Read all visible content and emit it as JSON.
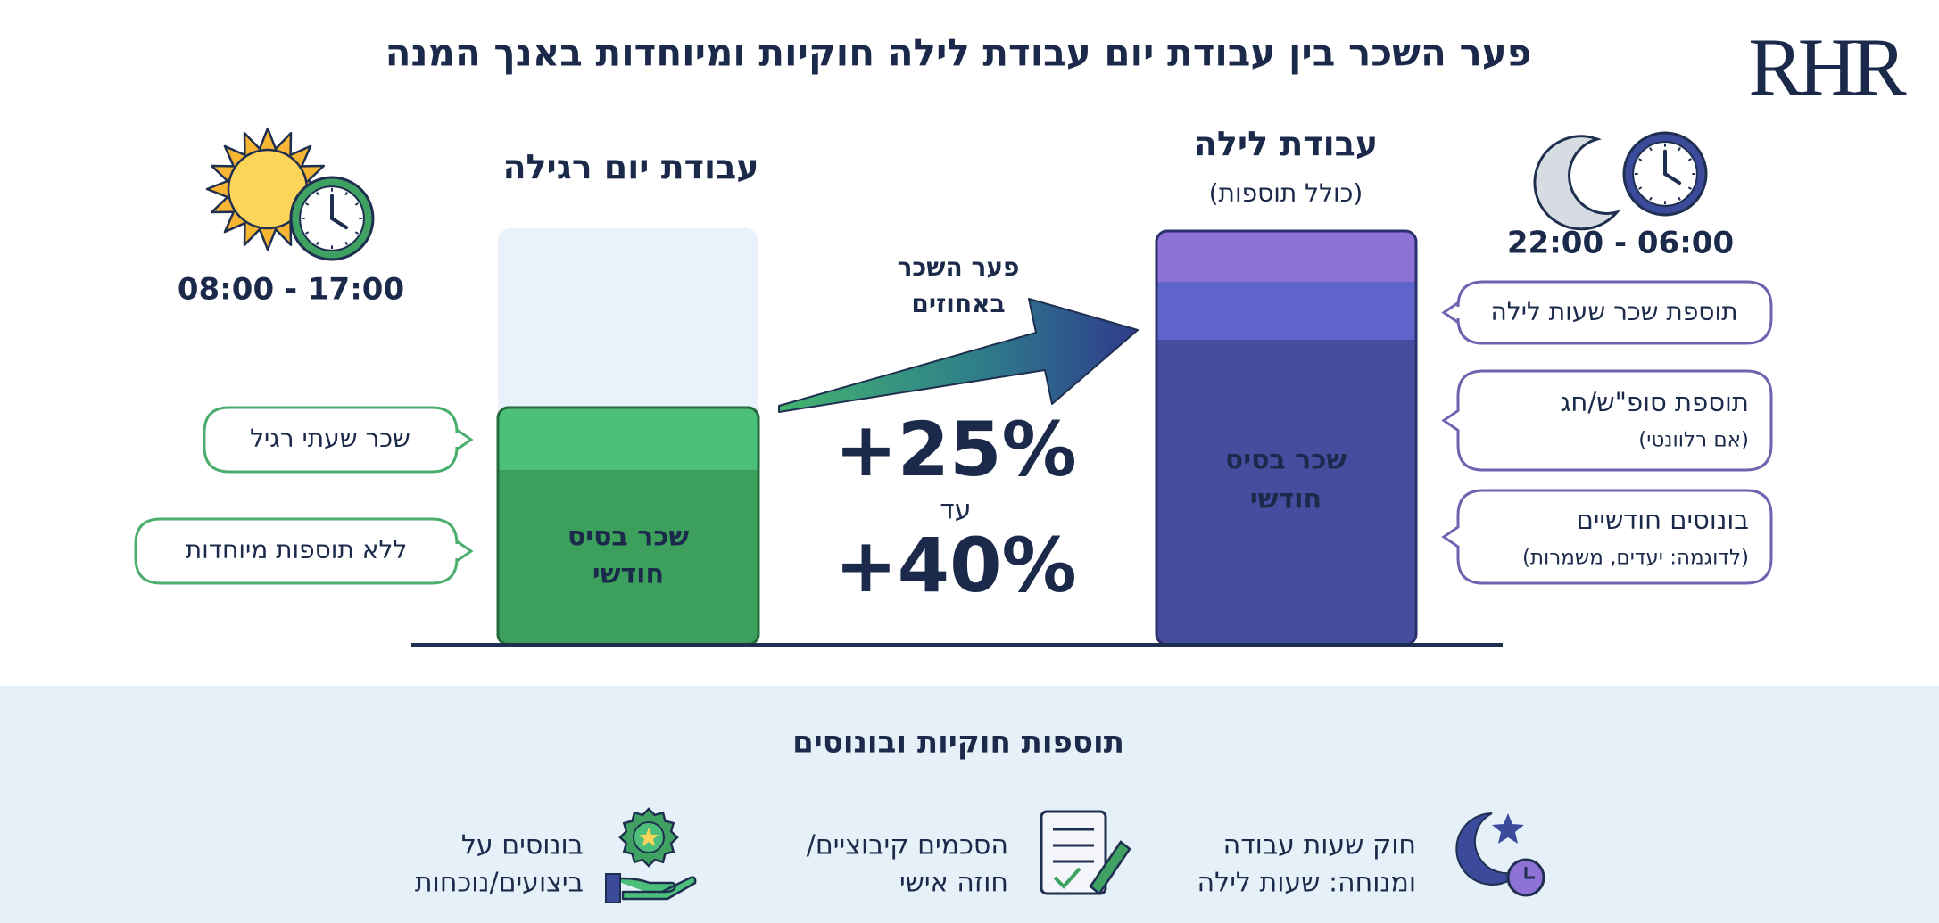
{
  "header": {
    "title": "פער השכר בין עבודת יום עבודת לילה חוקיות ומיוחדות באנך המנה",
    "logo": "RHR"
  },
  "day": {
    "title": "עבודת יום רגילה",
    "hours": "08:00 - 17:00",
    "bar_label": [
      "שכר בסיס",
      "חודשי"
    ],
    "notes": [
      "שכר שעתי רגיל",
      "ללא תוספות מיוחדות"
    ]
  },
  "gap": {
    "label": [
      "פער השכר",
      "באחוזים"
    ],
    "from": "+25%",
    "connector": "עד",
    "to": "+40%"
  },
  "night": {
    "title": "עבודת לילה",
    "subtitle": "(כולל תוספות)",
    "hours": "22:00 - 06:00",
    "bar_label": [
      "שכר בסיס",
      "חודשי"
    ],
    "notes": [
      {
        "text": "תוספת שכר שעות לילה"
      },
      {
        "text": "תוספת סופ\"ש/חג",
        "detail": "(אם רלוונטי)"
      },
      {
        "text": "בונוסים חודשיים",
        "detail": "(לדוגמה: יעדים, משמרות)"
      }
    ]
  },
  "footer": {
    "title": "תוספות חוקיות ובונוסים",
    "items": [
      {
        "lines": [
          "חוק שעות עבודה",
          "ומנוחה: שעות לילה"
        ]
      },
      {
        "lines": [
          "הסכמים קיבוציים/",
          "חוזה אישי"
        ]
      },
      {
        "lines": [
          "בונוסים על",
          "ביצועים/נוכחות"
        ]
      }
    ]
  }
}
